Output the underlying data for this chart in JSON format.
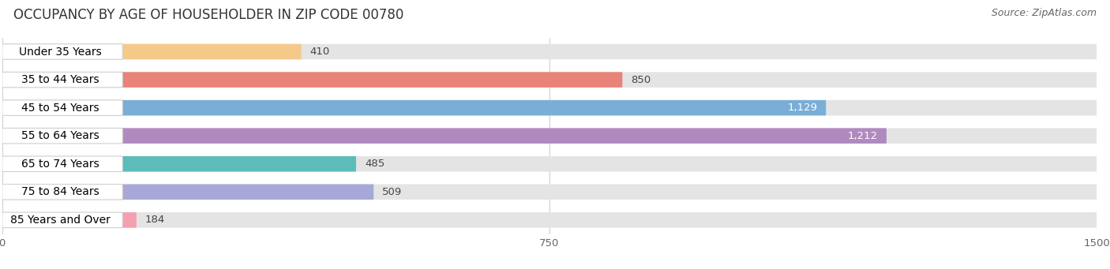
{
  "title": "OCCUPANCY BY AGE OF HOUSEHOLDER IN ZIP CODE 00780",
  "source": "Source: ZipAtlas.com",
  "categories": [
    "Under 35 Years",
    "35 to 44 Years",
    "45 to 54 Years",
    "55 to 64 Years",
    "65 to 74 Years",
    "75 to 84 Years",
    "85 Years and Over"
  ],
  "values": [
    410,
    850,
    1129,
    1212,
    485,
    509,
    184
  ],
  "bar_colors": [
    "#f5c98a",
    "#e8837a",
    "#7aaed6",
    "#b08abf",
    "#5bbcb8",
    "#a8a8d8",
    "#f4a0b0"
  ],
  "bar_bg": "#e4e4e4",
  "xlim": [
    0,
    1500
  ],
  "xticks": [
    0,
    750,
    1500
  ],
  "title_fontsize": 12,
  "source_fontsize": 9,
  "label_fontsize": 10,
  "value_fontsize": 9.5,
  "background_color": "#ffffff"
}
